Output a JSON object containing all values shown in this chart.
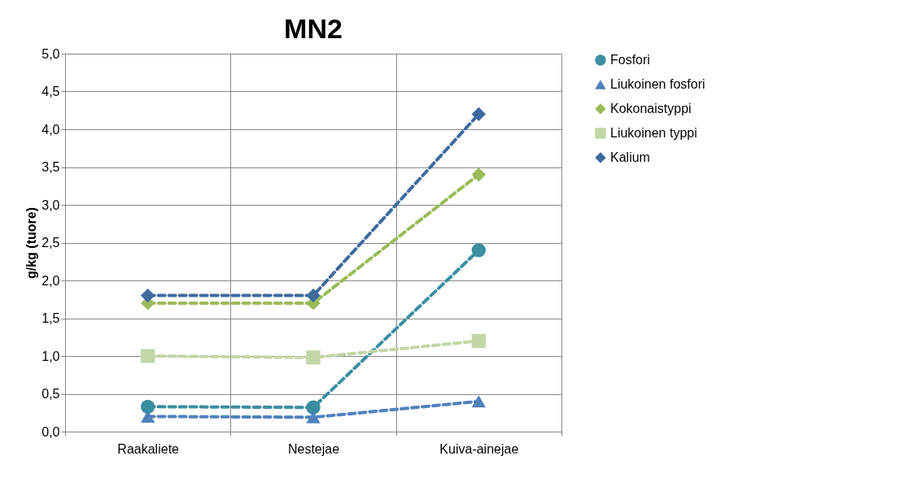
{
  "chart_data": {
    "type": "line",
    "title": "MN2",
    "ylabel": "g/kg (tuore)",
    "categories": [
      "Raakaliete",
      "Nestejae",
      "Kuiva-ainejae"
    ],
    "series": [
      {
        "name": "Fosfori",
        "color": "#3a8ea0",
        "marker": "circle",
        "values": [
          0.33,
          0.32,
          2.4
        ]
      },
      {
        "name": "Liukoinen fosfori",
        "color": "#4f81bd",
        "marker": "triangle",
        "values": [
          0.2,
          0.19,
          0.4
        ]
      },
      {
        "name": "Kokonaistyppi",
        "color": "#9bbb59",
        "marker": "diamond",
        "values": [
          1.7,
          1.7,
          3.4
        ]
      },
      {
        "name": "Liukoinen typpi",
        "color": "#c3d6a5",
        "marker": "square",
        "values": [
          1.0,
          0.98,
          1.2
        ]
      },
      {
        "name": "Kalium",
        "color": "#3e6a9e",
        "marker": "diamond",
        "values": [
          1.8,
          1.8,
          4.2
        ]
      }
    ],
    "ylim": [
      0,
      5
    ],
    "yticks": [
      {
        "value": 0,
        "label": "0,0"
      },
      {
        "value": 0.5,
        "label": "0,5"
      },
      {
        "value": 1,
        "label": "1,0"
      },
      {
        "value": 1.5,
        "label": "1,5"
      },
      {
        "value": 2,
        "label": "2,0"
      },
      {
        "value": 2.5,
        "label": "2,5"
      },
      {
        "value": 3,
        "label": "3,0"
      },
      {
        "value": 3.5,
        "label": "3,5"
      },
      {
        "value": 4,
        "label": "4,0"
      },
      {
        "value": 4.5,
        "label": "4,5"
      },
      {
        "value": 5,
        "label": "5,0"
      }
    ],
    "grid": true,
    "legend": "right",
    "line_style": "dashed"
  }
}
